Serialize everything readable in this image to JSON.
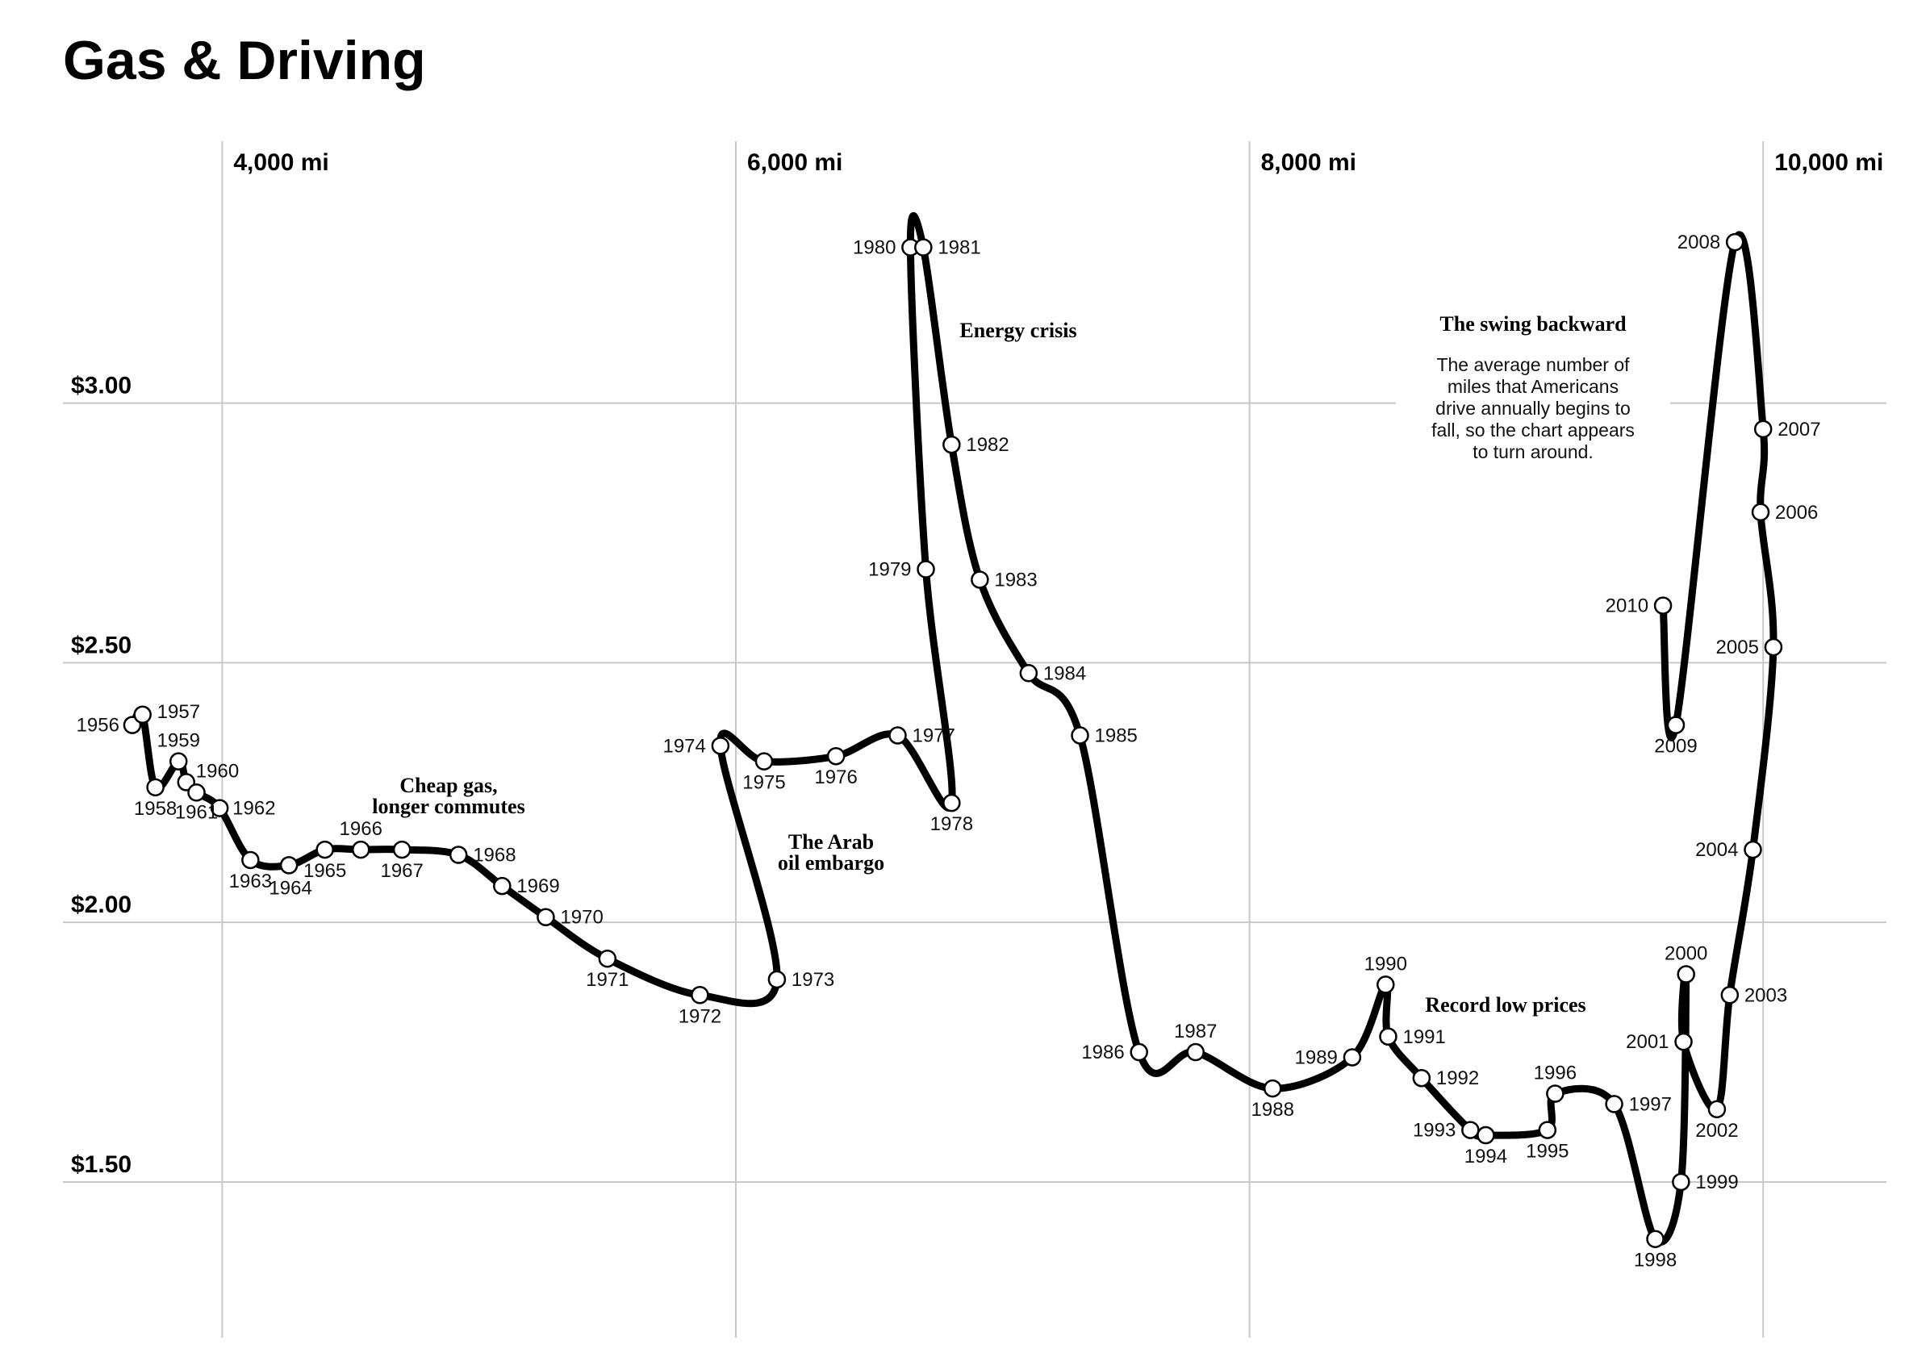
{
  "title": "Gas & Driving",
  "chart_data": {
    "type": "line",
    "title": "Gas & Driving",
    "x_ticks": [
      "4,000 mi",
      "6,000 mi",
      "8,000 mi",
      "10,000 mi"
    ],
    "x_tick_values": [
      4000,
      6000,
      8000,
      10000
    ],
    "y_ticks": [
      "$3.00",
      "$2.50",
      "$2.00",
      "$1.50"
    ],
    "y_tick_values": [
      3.0,
      2.5,
      2.0,
      1.5
    ],
    "xlim": [
      3380,
      10480
    ],
    "ylim": [
      1.2,
      3.52
    ],
    "grid": true,
    "points": [
      {
        "year": "1956",
        "x": 3650,
        "y": 2.38
      },
      {
        "year": "1957",
        "x": 3690,
        "y": 2.4
      },
      {
        "year": "1958",
        "x": 3740,
        "y": 2.26
      },
      {
        "year": "1959",
        "x": 3830,
        "y": 2.31
      },
      {
        "year": "1960",
        "x": 3860,
        "y": 2.27
      },
      {
        "year": "1961",
        "x": 3900,
        "y": 2.25
      },
      {
        "year": "1962",
        "x": 3990,
        "y": 2.22
      },
      {
        "year": "1963",
        "x": 4110,
        "y": 2.12
      },
      {
        "year": "1964",
        "x": 4260,
        "y": 2.11
      },
      {
        "year": "1965",
        "x": 4400,
        "y": 2.14
      },
      {
        "year": "1966",
        "x": 4540,
        "y": 2.14
      },
      {
        "year": "1967",
        "x": 4700,
        "y": 2.14
      },
      {
        "year": "1968",
        "x": 4920,
        "y": 2.13
      },
      {
        "year": "1969",
        "x": 5090,
        "y": 2.07
      },
      {
        "year": "1970",
        "x": 5260,
        "y": 2.01
      },
      {
        "year": "1971",
        "x": 5500,
        "y": 1.93
      },
      {
        "year": "1972",
        "x": 5860,
        "y": 1.86
      },
      {
        "year": "1973",
        "x": 6160,
        "y": 1.89
      },
      {
        "year": "1974",
        "x": 5940,
        "y": 2.34
      },
      {
        "year": "1975",
        "x": 6110,
        "y": 2.31
      },
      {
        "year": "1976",
        "x": 6390,
        "y": 2.32
      },
      {
        "year": "1977",
        "x": 6630,
        "y": 2.36
      },
      {
        "year": "1978",
        "x": 6840,
        "y": 2.23
      },
      {
        "year": "1979",
        "x": 6740,
        "y": 2.68
      },
      {
        "year": "1980",
        "x": 6680,
        "y": 3.3
      },
      {
        "year": "1981",
        "x": 6730,
        "y": 3.3
      },
      {
        "year": "1982",
        "x": 6840,
        "y": 2.92
      },
      {
        "year": "1983",
        "x": 6950,
        "y": 2.66
      },
      {
        "year": "1984",
        "x": 7140,
        "y": 2.48
      },
      {
        "year": "1985",
        "x": 7340,
        "y": 2.36
      },
      {
        "year": "1986",
        "x": 7570,
        "y": 1.75
      },
      {
        "year": "1987",
        "x": 7790,
        "y": 1.75
      },
      {
        "year": "1988",
        "x": 8090,
        "y": 1.68
      },
      {
        "year": "1989",
        "x": 8400,
        "y": 1.74
      },
      {
        "year": "1990",
        "x": 8530,
        "y": 1.88
      },
      {
        "year": "1991",
        "x": 8540,
        "y": 1.78
      },
      {
        "year": "1992",
        "x": 8670,
        "y": 1.7
      },
      {
        "year": "1993",
        "x": 8860,
        "y": 1.6
      },
      {
        "year": "1994",
        "x": 8920,
        "y": 1.59
      },
      {
        "year": "1995",
        "x": 9160,
        "y": 1.6
      },
      {
        "year": "1996",
        "x": 9190,
        "y": 1.67
      },
      {
        "year": "1997",
        "x": 9420,
        "y": 1.65
      },
      {
        "year": "1998",
        "x": 9580,
        "y": 1.39
      },
      {
        "year": "1999",
        "x": 9680,
        "y": 1.5
      },
      {
        "year": "2000",
        "x": 9700,
        "y": 1.9
      },
      {
        "year": "2001",
        "x": 9690,
        "y": 1.77
      },
      {
        "year": "2002",
        "x": 9820,
        "y": 1.64
      },
      {
        "year": "2003",
        "x": 9870,
        "y": 1.86
      },
      {
        "year": "2004",
        "x": 9960,
        "y": 2.14
      },
      {
        "year": "2005",
        "x": 10040,
        "y": 2.53
      },
      {
        "year": "2006",
        "x": 9990,
        "y": 2.79
      },
      {
        "year": "2007",
        "x": 10000,
        "y": 2.95
      },
      {
        "year": "2008",
        "x": 9890,
        "y": 3.31
      },
      {
        "year": "2009",
        "x": 9660,
        "y": 2.38
      },
      {
        "year": "2010",
        "x": 9610,
        "y": 2.61
      }
    ],
    "annotations": [
      {
        "heading": "Cheap gas,\nlonger commutes",
        "body": ""
      },
      {
        "heading": "The Arab\noil embargo",
        "body": ""
      },
      {
        "heading": "Energy crisis",
        "body": ""
      },
      {
        "heading": "Record low prices",
        "body": ""
      },
      {
        "heading": "The swing backward",
        "body": "The average number of\nmiles that Americans\ndrive annually begins to\nfall, so the chart appears\nto turn around."
      }
    ]
  }
}
